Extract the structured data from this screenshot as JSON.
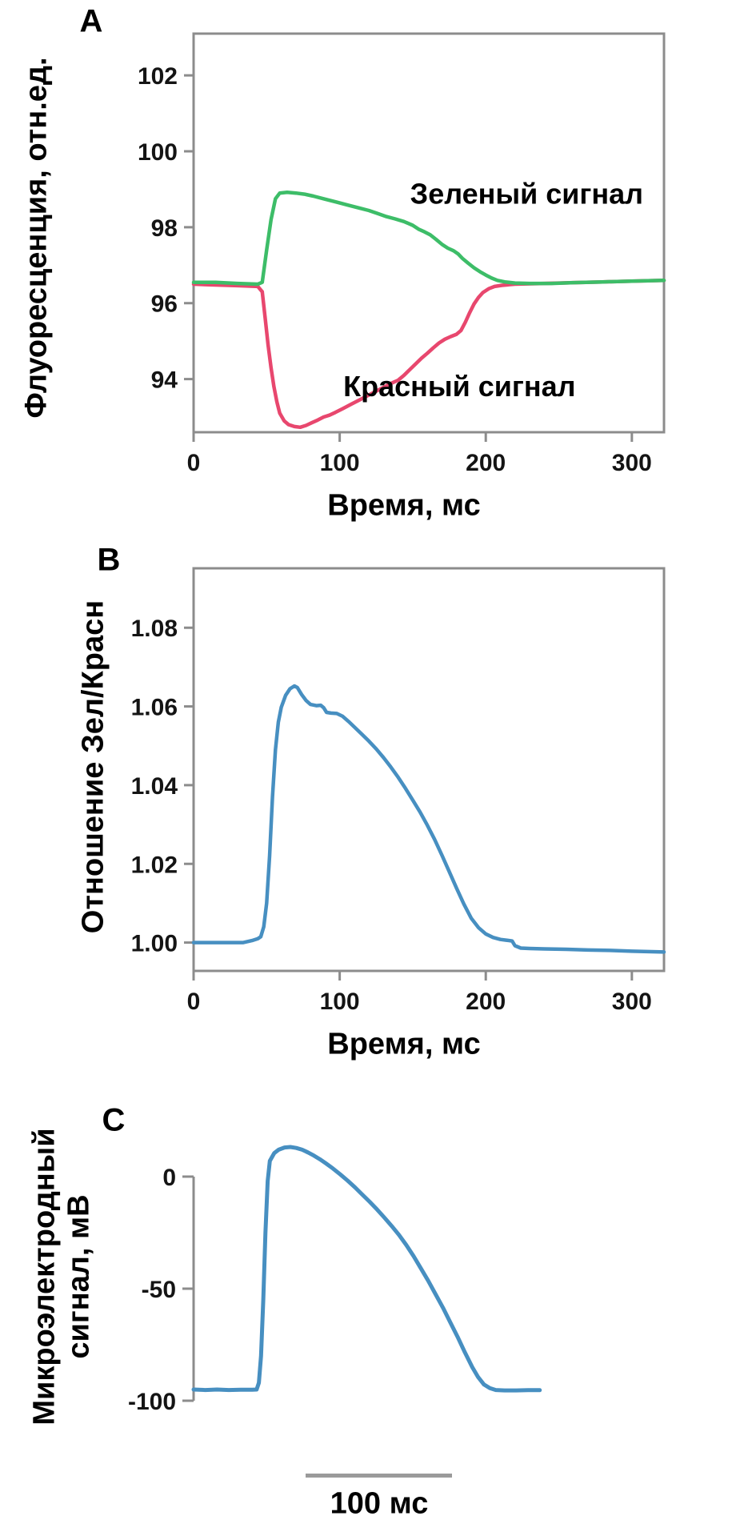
{
  "figure": {
    "background": "#ffffff",
    "axis_color": "#8c8c8c",
    "text_color": "#000000"
  },
  "chart_data": [
    {
      "panel": "A",
      "panel_label": "A",
      "type": "line",
      "ylabel": "Флуоресценция, отн.ед.",
      "xlabel": "Время, мс",
      "xlim": [
        0,
        322
      ],
      "ylim": [
        92.6,
        103.1
      ],
      "grid": false,
      "frame": "box",
      "xticks": [
        {
          "v": 0,
          "label": "0"
        },
        {
          "v": 100,
          "label": "100"
        },
        {
          "v": 200,
          "label": "200"
        },
        {
          "v": 300,
          "label": "300"
        }
      ],
      "yticks": [
        {
          "v": 94,
          "label": "94"
        },
        {
          "v": 96,
          "label": "96"
        },
        {
          "v": 98,
          "label": "98"
        },
        {
          "v": 100,
          "label": "100"
        },
        {
          "v": 102,
          "label": "102"
        }
      ],
      "annotations": [
        {
          "text": "Зеленый сигнал",
          "x": 228,
          "y": 98.62
        },
        {
          "text": "Красный сигнал",
          "x": 182,
          "y": 93.55
        }
      ],
      "series": [
        {
          "name": "Красный сигнал",
          "slug": "red-signal-line",
          "color": "#e8476e",
          "width": 4.5,
          "points": [
            [
              0,
              96.5
            ],
            [
              15,
              96.48
            ],
            [
              30,
              96.46
            ],
            [
              44,
              96.44
            ],
            [
              47,
              96.3
            ],
            [
              49,
              95.6
            ],
            [
              51,
              94.9
            ],
            [
              53,
              94.3
            ],
            [
              55,
              93.8
            ],
            [
              57,
              93.4
            ],
            [
              59,
              93.1
            ],
            [
              62,
              92.9
            ],
            [
              65,
              92.8
            ],
            [
              69,
              92.75
            ],
            [
              73,
              92.73
            ],
            [
              77,
              92.78
            ],
            [
              81,
              92.85
            ],
            [
              85,
              92.92
            ],
            [
              89,
              93.0
            ],
            [
              93,
              93.05
            ],
            [
              97,
              93.12
            ],
            [
              102,
              93.22
            ],
            [
              108,
              93.34
            ],
            [
              114,
              93.46
            ],
            [
              120,
              93.58
            ],
            [
              126,
              93.7
            ],
            [
              132,
              93.82
            ],
            [
              136,
              93.9
            ],
            [
              140,
              93.97
            ],
            [
              144,
              94.1
            ],
            [
              148,
              94.25
            ],
            [
              152,
              94.4
            ],
            [
              156,
              94.55
            ],
            [
              160,
              94.68
            ],
            [
              164,
              94.82
            ],
            [
              168,
              94.95
            ],
            [
              172,
              95.05
            ],
            [
              176,
              95.12
            ],
            [
              180,
              95.18
            ],
            [
              183,
              95.28
            ],
            [
              186,
              95.5
            ],
            [
              189,
              95.75
            ],
            [
              192,
              95.98
            ],
            [
              195,
              96.15
            ],
            [
              198,
              96.28
            ],
            [
              202,
              96.38
            ],
            [
              206,
              96.44
            ],
            [
              211,
              96.47
            ],
            [
              220,
              96.5
            ],
            [
              240,
              96.52
            ],
            [
              260,
              96.54
            ],
            [
              280,
              96.56
            ],
            [
              300,
              96.58
            ],
            [
              322,
              96.6
            ]
          ]
        },
        {
          "name": "Зеленый сигнал",
          "slug": "green-signal-line",
          "color": "#3dbd68",
          "width": 4.5,
          "points": [
            [
              0,
              96.55
            ],
            [
              15,
              96.55
            ],
            [
              30,
              96.52
            ],
            [
              44,
              96.5
            ],
            [
              47,
              96.55
            ],
            [
              50,
              97.4
            ],
            [
              53,
              98.2
            ],
            [
              56,
              98.75
            ],
            [
              59,
              98.9
            ],
            [
              64,
              98.92
            ],
            [
              70,
              98.9
            ],
            [
              76,
              98.87
            ],
            [
              82,
              98.82
            ],
            [
              90,
              98.74
            ],
            [
              98,
              98.66
            ],
            [
              106,
              98.58
            ],
            [
              114,
              98.5
            ],
            [
              120,
              98.44
            ],
            [
              126,
              98.36
            ],
            [
              132,
              98.28
            ],
            [
              138,
              98.22
            ],
            [
              144,
              98.15
            ],
            [
              150,
              98.05
            ],
            [
              154,
              97.95
            ],
            [
              158,
              97.88
            ],
            [
              162,
              97.8
            ],
            [
              166,
              97.68
            ],
            [
              170,
              97.55
            ],
            [
              174,
              97.45
            ],
            [
              178,
              97.38
            ],
            [
              181,
              97.3
            ],
            [
              184,
              97.18
            ],
            [
              188,
              97.05
            ],
            [
              192,
              96.93
            ],
            [
              196,
              96.83
            ],
            [
              200,
              96.74
            ],
            [
              204,
              96.66
            ],
            [
              208,
              96.6
            ],
            [
              213,
              96.56
            ],
            [
              220,
              96.53
            ],
            [
              230,
              96.52
            ],
            [
              245,
              96.52
            ],
            [
              260,
              96.54
            ],
            [
              280,
              96.56
            ],
            [
              300,
              96.58
            ],
            [
              322,
              96.6
            ]
          ]
        }
      ]
    },
    {
      "panel": "B",
      "panel_label": "B",
      "type": "line",
      "ylabel": "Отношение Зел/Красн",
      "xlabel": "Время, мс",
      "xlim": [
        0,
        322
      ],
      "ylim": [
        0.9928,
        1.0951
      ],
      "grid": false,
      "frame": "box",
      "xticks": [
        {
          "v": 0,
          "label": "0"
        },
        {
          "v": 100,
          "label": "100"
        },
        {
          "v": 200,
          "label": "200"
        },
        {
          "v": 300,
          "label": "300"
        }
      ],
      "yticks": [
        {
          "v": 1.0,
          "label": "1.00"
        },
        {
          "v": 1.02,
          "label": "1.02"
        },
        {
          "v": 1.04,
          "label": "1.04"
        },
        {
          "v": 1.06,
          "label": "1.06"
        },
        {
          "v": 1.08,
          "label": "1.08"
        }
      ],
      "annotations": [],
      "series": [
        {
          "name": "Отношение Зел/Красн",
          "slug": "ratio-line",
          "color": "#478fc1",
          "width": 4.5,
          "points": [
            [
              0,
              1.0
            ],
            [
              12,
              1.0
            ],
            [
              24,
              1.0
            ],
            [
              34,
              1.0
            ],
            [
              40,
              1.0005
            ],
            [
              44,
              1.001
            ],
            [
              46,
              1.0015
            ],
            [
              48,
              1.004
            ],
            [
              50,
              1.01
            ],
            [
              52,
              1.022
            ],
            [
              54,
              1.037
            ],
            [
              56,
              1.049
            ],
            [
              58,
              1.056
            ],
            [
              60,
              1.0598
            ],
            [
              63,
              1.0628
            ],
            [
              66,
              1.0645
            ],
            [
              69,
              1.0652
            ],
            [
              71,
              1.0648
            ],
            [
              74,
              1.063
            ],
            [
              77,
              1.0615
            ],
            [
              80,
              1.0605
            ],
            [
              84,
              1.0602
            ],
            [
              87,
              1.0603
            ],
            [
              89,
              1.0597
            ],
            [
              91,
              1.0585
            ],
            [
              94,
              1.0583
            ],
            [
              98,
              1.0582
            ],
            [
              102,
              1.0575
            ],
            [
              106,
              1.0562
            ],
            [
              110,
              1.0548
            ],
            [
              115,
              1.053
            ],
            [
              120,
              1.0512
            ],
            [
              125,
              1.0492
            ],
            [
              130,
              1.047
            ],
            [
              135,
              1.0446
            ],
            [
              140,
              1.042
            ],
            [
              145,
              1.0392
            ],
            [
              150,
              1.0362
            ],
            [
              155,
              1.0332
            ],
            [
              160,
              1.0298
            ],
            [
              165,
              1.0262
            ],
            [
              170,
              1.0222
            ],
            [
              175,
              1.018
            ],
            [
              180,
              1.0138
            ],
            [
              185,
              1.0098
            ],
            [
              190,
              1.0062
            ],
            [
              195,
              1.0038
            ],
            [
              200,
              1.0022
            ],
            [
              205,
              1.0013
            ],
            [
              210,
              1.0008
            ],
            [
              214,
              1.0006
            ],
            [
              218,
              1.0004
            ],
            [
              220,
              0.9992
            ],
            [
              224,
              0.9986
            ],
            [
              230,
              0.9985
            ],
            [
              240,
              0.9984
            ],
            [
              255,
              0.9983
            ],
            [
              270,
              0.9981
            ],
            [
              285,
              0.998
            ],
            [
              300,
              0.9978
            ],
            [
              322,
              0.9976
            ]
          ]
        }
      ]
    },
    {
      "panel": "C",
      "panel_label": "C",
      "type": "line",
      "ylabel_line1": "Микроэлектродный",
      "ylabel_line2": "сигнал, мВ",
      "xlabel": "",
      "scalebar_label": "100 мс",
      "scalebar_ms": 100,
      "xlim": [
        0,
        240
      ],
      "ylim": [
        -105,
        15
      ],
      "grid": false,
      "frame": "yaxis",
      "xticks": [],
      "yticks": [
        {
          "v": 0,
          "label": "0"
        },
        {
          "v": -50,
          "label": "-50"
        },
        {
          "v": -100,
          "label": "-100"
        }
      ],
      "annotations": [],
      "series": [
        {
          "name": "Микроэлектродный сигнал",
          "slug": "microelectrode-line",
          "color": "#478fc1",
          "width": 5,
          "points": [
            [
              0,
              -95
            ],
            [
              8,
              -95.2
            ],
            [
              16,
              -95
            ],
            [
              24,
              -95.2
            ],
            [
              32,
              -95.1
            ],
            [
              40,
              -95.1
            ],
            [
              43,
              -95
            ],
            [
              44.5,
              -92
            ],
            [
              46,
              -80
            ],
            [
              47.5,
              -55
            ],
            [
              49,
              -25
            ],
            [
              50.5,
              -2
            ],
            [
              52,
              7
            ],
            [
              55,
              10.5
            ],
            [
              58,
              12
            ],
            [
              62,
              13
            ],
            [
              66,
              13.2
            ],
            [
              70,
              12.8
            ],
            [
              74,
              12
            ],
            [
              78,
              10.8
            ],
            [
              82,
              9.4
            ],
            [
              86,
              7.8
            ],
            [
              90,
              6
            ],
            [
              95,
              3.6
            ],
            [
              100,
              1
            ],
            [
              105,
              -1.8
            ],
            [
              110,
              -4.8
            ],
            [
              115,
              -8
            ],
            [
              120,
              -11.2
            ],
            [
              125,
              -14.6
            ],
            [
              130,
              -18.2
            ],
            [
              135,
              -22
            ],
            [
              140,
              -26
            ],
            [
              145,
              -30.5
            ],
            [
              150,
              -35.5
            ],
            [
              155,
              -41
            ],
            [
              160,
              -46.5
            ],
            [
              165,
              -52.5
            ],
            [
              170,
              -58.5
            ],
            [
              175,
              -65
            ],
            [
              180,
              -71.5
            ],
            [
              185,
              -78.5
            ],
            [
              190,
              -85
            ],
            [
              194,
              -89.5
            ],
            [
              198,
              -92.8
            ],
            [
              202,
              -94.4
            ],
            [
              206,
              -95.2
            ],
            [
              212,
              -95.4
            ],
            [
              220,
              -95.4
            ],
            [
              228,
              -95.3
            ],
            [
              236,
              -95.3
            ]
          ]
        }
      ]
    }
  ]
}
